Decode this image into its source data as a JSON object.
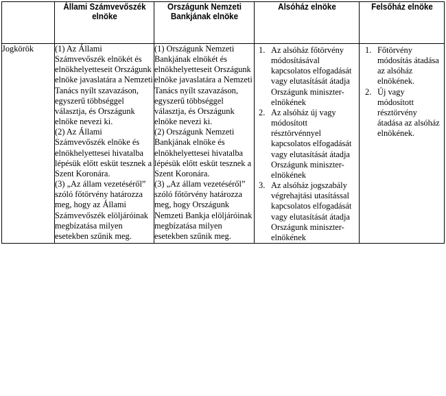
{
  "headers": [
    "",
    "Állami Számvevőszék elnöke",
    "Országunk Nemzeti Bankjának elnöke",
    "Alsóház elnöke",
    "Felsőház elnöke"
  ],
  "row_label": "Jogkörök",
  "col_state_audit": [
    "(1) Az Állami Számvevőszék elnökét és elnökhelyetteseit Országunk elnöke javaslatára a Nemzeti Tanács nyílt szavazáson, egyszerű többséggel választja, és Országunk elnöke nevezi ki.",
    "(2) Az Állami Számvevőszék elnöke és elnökhelyettesei hivatalba lépésük előtt esküt tesznek a Szent Koronára.",
    "(3) „Az állam vezetéséről” szóló főtörvény határozza meg, hogy az Állami Számvevőszék elöljáróinak megbízatása milyen esetekben szűnik meg."
  ],
  "col_national_bank": [
    "(1) Országunk Nemzeti Bankjának elnökét és elnökhelyetteseit Országunk elnöke javaslatára a Nemzeti Tanács nyílt szavazáson, egyszerű többséggel választja, és Országunk elnöke nevezi ki.",
    "(2) Országunk Nemzeti Bankjának elnöke és elnökhelyettesei hivatalba lépésük előtt esküt tesznek a Szent Koronára.",
    "(3) „Az állam vezetéséről” szóló főtörvény határozza meg, hogy Országunk Nemzeti Bankja elöljáróinak megbízatása milyen esetekben szűnik meg."
  ],
  "col_lower_house": [
    {
      "num": "1.",
      "text": "Az alsóház főtörvény módosításával kapcsolatos elfogadását vagy elutasítását átadja Országunk miniszter-elnökének"
    },
    {
      "num": "2.",
      "text": "Az alsóház új vagy módosított résztörvénnyel kapcsolatos elfogadását vagy elutasítását átadja Országunk miniszter-elnökének"
    },
    {
      "num": "3.",
      "text": "Az alsóház jogszabály végrehajtási utasítással kapcsolatos elfogadását vagy elutasítását átadja Országunk miniszter-elnökének"
    }
  ],
  "col_upper_house": [
    {
      "num": "1.",
      "text": "Főtörvény módosítás átadása az alsóház elnökének."
    },
    {
      "num": "2.",
      "text": "Új vagy módosított résztörvény átadása az alsóház elnökének."
    }
  ]
}
